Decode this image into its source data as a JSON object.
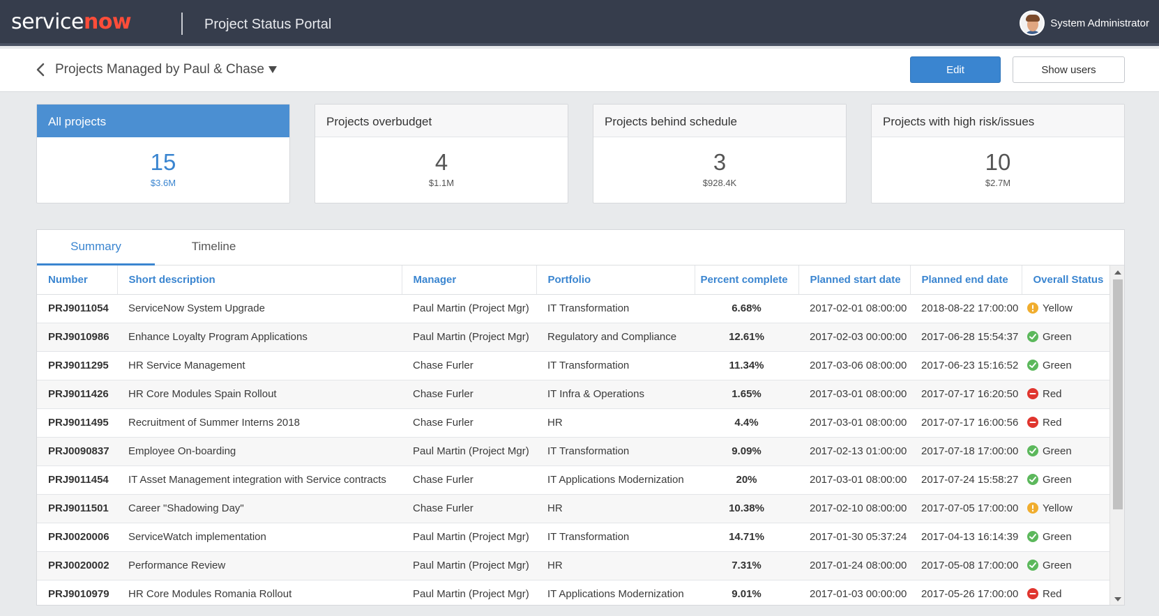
{
  "header": {
    "logo_service": "service",
    "logo_now": "now",
    "portal_title": "Project Status Portal",
    "user_name": "System Administrator"
  },
  "subheader": {
    "title": "Projects Managed by Paul & Chase",
    "edit_label": "Edit",
    "show_users_label": "Show users"
  },
  "cards": [
    {
      "title": "All projects",
      "count": "15",
      "amount": "$3.6M"
    },
    {
      "title": "Projects overbudget",
      "count": "4",
      "amount": "$1.1M"
    },
    {
      "title": "Projects behind schedule",
      "count": "3",
      "amount": "$928.4K"
    },
    {
      "title": "Projects with high risk/issues",
      "count": "10",
      "amount": "$2.7M"
    }
  ],
  "tabs": [
    "Summary",
    "Timeline"
  ],
  "table": {
    "columns": [
      "Number",
      "Short description",
      "Manager",
      "Portfolio",
      "Percent complete",
      "Planned start date",
      "Planned end date",
      "Overall Status"
    ],
    "rows": [
      [
        "PRJ9011054",
        "ServiceNow System Upgrade",
        "Paul Martin (Project Mgr)",
        "IT Transformation",
        "6.68%",
        "2017-02-01 08:00:00",
        "2018-08-22 17:00:00",
        "Yellow"
      ],
      [
        "PRJ9010986",
        "Enhance Loyalty Program Applications",
        "Paul Martin (Project Mgr)",
        "Regulatory and Compliance",
        "12.61%",
        "2017-02-03 00:00:00",
        "2017-06-28 15:54:37",
        "Green"
      ],
      [
        "PRJ9011295",
        "HR Service Management",
        "Chase Furler",
        "IT Transformation",
        "11.34%",
        "2017-03-06 08:00:00",
        "2017-06-23 15:16:52",
        "Green"
      ],
      [
        "PRJ9011426",
        "HR Core Modules Spain Rollout",
        "Chase Furler",
        "IT Infra & Operations",
        "1.65%",
        "2017-03-01 08:00:00",
        "2017-07-17 16:20:50",
        "Red"
      ],
      [
        "PRJ9011495",
        "Recruitment of Summer Interns 2018",
        "Chase Furler",
        "HR",
        "4.4%",
        "2017-03-01 08:00:00",
        "2017-07-17 16:00:56",
        "Red"
      ],
      [
        "PRJ0090837",
        "Employee On-boarding",
        "Paul Martin (Project Mgr)",
        "IT Transformation",
        "9.09%",
        "2017-02-13 01:00:00",
        "2017-07-18 17:00:00",
        "Green"
      ],
      [
        "PRJ9011454",
        "IT Asset Management integration with Service contracts",
        "Chase Furler",
        "IT Applications Modernization",
        "20%",
        "2017-03-01 08:00:00",
        "2017-07-24 15:58:27",
        "Green"
      ],
      [
        "PRJ9011501",
        "Career \"Shadowing Day\"",
        "Chase Furler",
        "HR",
        "10.38%",
        "2017-02-10 08:00:00",
        "2017-07-05 17:00:00",
        "Yellow"
      ],
      [
        "PRJ0020006",
        "ServiceWatch implementation",
        "Paul Martin (Project Mgr)",
        "IT Transformation",
        "14.71%",
        "2017-01-30 05:37:24",
        "2017-04-13 16:14:39",
        "Green"
      ],
      [
        "PRJ0020002",
        "Performance Review",
        "Paul Martin (Project Mgr)",
        "HR",
        "7.31%",
        "2017-01-24 08:00:00",
        "2017-05-08 17:00:00",
        "Green"
      ],
      [
        "PRJ9010979",
        "HR Core Modules Romania Rollout",
        "Paul Martin (Project Mgr)",
        "IT Applications Modernization",
        "9.01%",
        "2017-01-03 00:00:00",
        "2017-05-26 17:00:00",
        "Red"
      ]
    ]
  },
  "status_colors": {
    "Green": "#5cb85c",
    "Yellow": "#f0ad2e",
    "Red": "#e0352e"
  },
  "accent_color": "#3a85d0"
}
